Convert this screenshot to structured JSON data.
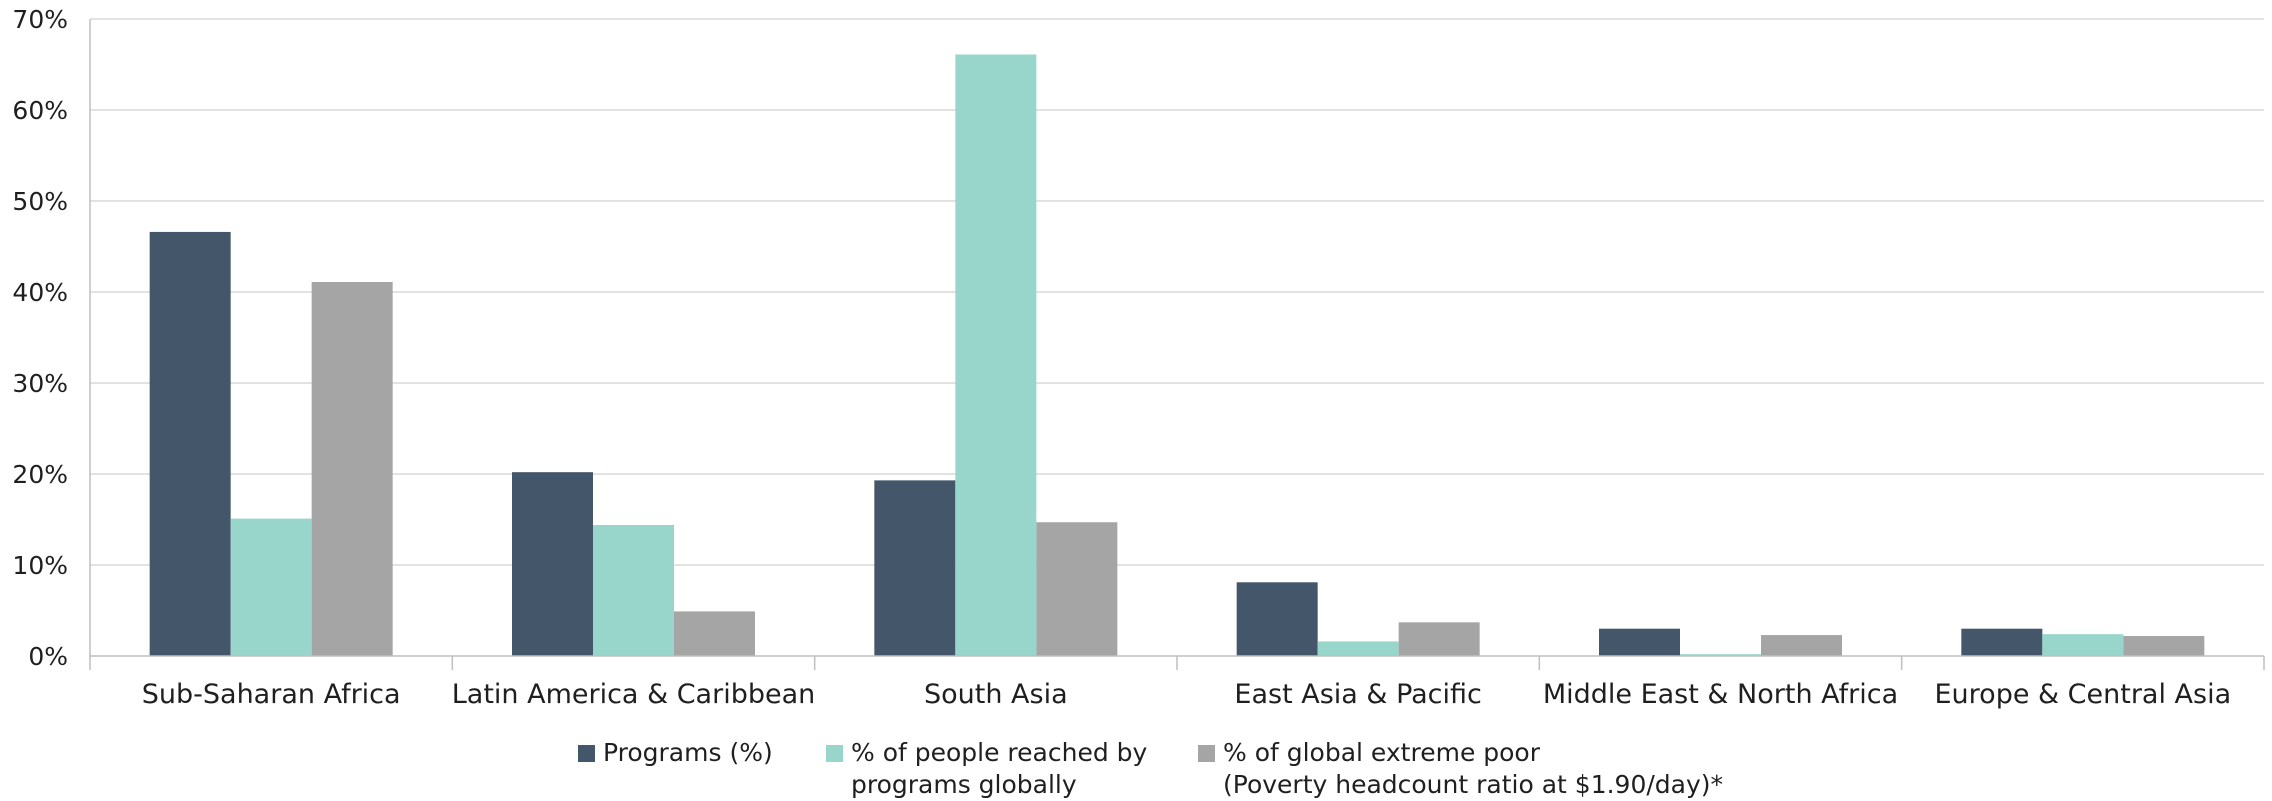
{
  "chart_data": {
    "type": "bar",
    "categories": [
      "Sub-Saharan Africa",
      "Latin America & Caribbean",
      "South Asia",
      "East Asia & Pacific",
      "Middle East & North Africa",
      "Europe & Central Asia"
    ],
    "series": [
      {
        "name": "Programs (%)",
        "color": "#44566a",
        "values": [
          46.6,
          20.2,
          19.3,
          8.1,
          3.0,
          3.0
        ]
      },
      {
        "name": "% of people reached by\nprograms globally",
        "color": "#98d5ca",
        "values": [
          15.1,
          14.4,
          66.1,
          1.6,
          0.2,
          2.4
        ]
      },
      {
        "name": "% of global extreme poor\n(Poverty headcount ratio at $1.90/day)*",
        "color": "#a5a5a5",
        "values": [
          41.1,
          4.9,
          14.7,
          3.7,
          2.3,
          2.2
        ]
      }
    ],
    "ylim": [
      0,
      70
    ],
    "yticks": [
      "0%",
      "10%",
      "20%",
      "30%",
      "40%",
      "50%",
      "60%",
      "70%"
    ],
    "grid": true,
    "legend_position": "bottom"
  }
}
